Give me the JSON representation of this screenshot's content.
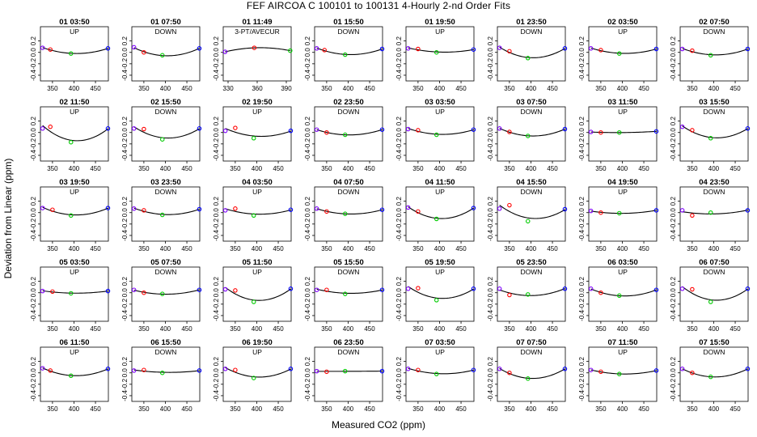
{
  "figure": {
    "title": "FEF   AIRCOA C   100101 to 100131   4-Hourly 2-nd Order Fits",
    "xlabel": "Measured CO2 (ppm)",
    "ylabel": "Deviation from Linear (ppm)"
  },
  "colors": {
    "curve": "#000000",
    "low_std": "#7f00ff",
    "mid_low_std": "#ff0000",
    "mid_high_std": "#00cc00",
    "high_std": "#0000ff"
  },
  "chart_data": {
    "type": "scatter",
    "panel_grid": {
      "rows": 5,
      "cols": 8
    },
    "ylim": [
      -0.5,
      0.45
    ],
    "yticks": [
      -0.4,
      -0.2,
      0.0,
      0.2
    ],
    "default_xlim": [
      322,
      480
    ],
    "default_xticks": [
      350,
      400,
      450
    ],
    "grid": false,
    "panels": [
      {
        "label": "01 03:50",
        "mode": "UP",
        "x": [
          327,
          345,
          393,
          479
        ],
        "y": [
          0.08,
          0.05,
          -0.02,
          0.07
        ]
      },
      {
        "label": "01 07:50",
        "mode": "DOWN",
        "x": [
          327,
          350,
          393,
          479
        ],
        "y": [
          0.09,
          0.0,
          -0.05,
          0.07
        ]
      },
      {
        "label": "01 11:49",
        "mode": "3-PT/AVECUR",
        "xlim": [
          325,
          395
        ],
        "xticks": [
          330,
          360,
          390
        ],
        "x": [
          327,
          357,
          394
        ],
        "y": [
          0.01,
          0.08,
          0.03
        ]
      },
      {
        "label": "01 15:50",
        "mode": "DOWN",
        "x": [
          327,
          345,
          393,
          479
        ],
        "y": [
          0.07,
          0.04,
          -0.04,
          0.06
        ]
      },
      {
        "label": "01 19:50",
        "mode": "UP",
        "x": [
          327,
          350,
          393,
          479
        ],
        "y": [
          0.07,
          0.06,
          0.0,
          0.05
        ]
      },
      {
        "label": "01 23:50",
        "mode": "DOWN",
        "x": [
          327,
          350,
          393,
          479
        ],
        "y": [
          0.08,
          0.02,
          -0.1,
          0.07
        ]
      },
      {
        "label": "02 03:50",
        "mode": "UP",
        "x": [
          327,
          350,
          393,
          479
        ],
        "y": [
          0.07,
          0.04,
          -0.02,
          0.06
        ]
      },
      {
        "label": "02 07:50",
        "mode": "DOWN",
        "x": [
          327,
          350,
          393,
          479
        ],
        "y": [
          0.06,
          0.03,
          -0.05,
          0.06
        ]
      },
      {
        "label": "02 11:50",
        "mode": "UP",
        "x": [
          327,
          345,
          393,
          479
        ],
        "y": [
          0.07,
          0.1,
          -0.17,
          0.07
        ]
      },
      {
        "label": "02 15:50",
        "mode": "DOWN",
        "x": [
          327,
          350,
          393,
          479
        ],
        "y": [
          0.07,
          0.06,
          -0.12,
          0.07
        ]
      },
      {
        "label": "02 19:50",
        "mode": "UP",
        "x": [
          327,
          350,
          393,
          479
        ],
        "y": [
          0.03,
          0.08,
          -0.1,
          0.03
        ]
      },
      {
        "label": "02 23:50",
        "mode": "DOWN",
        "x": [
          327,
          350,
          393,
          479
        ],
        "y": [
          0.05,
          0.0,
          -0.04,
          0.05
        ]
      },
      {
        "label": "03 03:50",
        "mode": "UP",
        "x": [
          327,
          350,
          393,
          479
        ],
        "y": [
          0.06,
          0.04,
          -0.04,
          0.05
        ]
      },
      {
        "label": "03 07:50",
        "mode": "DOWN",
        "x": [
          327,
          350,
          393,
          479
        ],
        "y": [
          0.07,
          0.01,
          -0.06,
          0.06
        ]
      },
      {
        "label": "03 11:50",
        "mode": "UP",
        "x": [
          327,
          350,
          393,
          479
        ],
        "y": [
          0.01,
          0.0,
          0.0,
          0.02
        ]
      },
      {
        "label": "03 15:50",
        "mode": "DOWN",
        "x": [
          327,
          350,
          393,
          479
        ],
        "y": [
          0.1,
          0.04,
          -0.1,
          0.07
        ]
      },
      {
        "label": "03 19:50",
        "mode": "UP",
        "x": [
          327,
          350,
          393,
          479
        ],
        "y": [
          0.08,
          0.05,
          -0.05,
          0.08
        ]
      },
      {
        "label": "03 23:50",
        "mode": "DOWN",
        "x": [
          327,
          350,
          393,
          479
        ],
        "y": [
          0.07,
          0.04,
          -0.04,
          0.06
        ]
      },
      {
        "label": "04 03:50",
        "mode": "UP",
        "x": [
          327,
          350,
          393,
          479
        ],
        "y": [
          0.04,
          0.07,
          -0.05,
          0.05
        ]
      },
      {
        "label": "04 07:50",
        "mode": "DOWN",
        "x": [
          327,
          350,
          393,
          479
        ],
        "y": [
          0.07,
          0.02,
          -0.02,
          0.05
        ]
      },
      {
        "label": "04 11:50",
        "mode": "UP",
        "x": [
          327,
          350,
          393,
          479
        ],
        "y": [
          0.09,
          0.02,
          -0.11,
          0.08
        ]
      },
      {
        "label": "04 15:50",
        "mode": "DOWN",
        "x": [
          327,
          350,
          393,
          479
        ],
        "y": [
          0.07,
          0.13,
          -0.15,
          0.06
        ]
      },
      {
        "label": "04 19:50",
        "mode": "UP",
        "x": [
          327,
          350,
          393,
          479
        ],
        "y": [
          0.03,
          0.0,
          -0.01,
          0.04
        ]
      },
      {
        "label": "04 23:50",
        "mode": "DOWN",
        "x": [
          327,
          350,
          393,
          479
        ],
        "y": [
          0.04,
          -0.05,
          0.0,
          0.04
        ]
      },
      {
        "label": "05 03:50",
        "mode": "UP",
        "x": [
          327,
          350,
          393,
          479
        ],
        "y": [
          0.03,
          0.02,
          -0.01,
          0.03
        ]
      },
      {
        "label": "05 07:50",
        "mode": "DOWN",
        "x": [
          327,
          350,
          393,
          479
        ],
        "y": [
          0.05,
          0.0,
          -0.02,
          0.05
        ]
      },
      {
        "label": "05 11:50",
        "mode": "UP",
        "x": [
          327,
          350,
          393,
          479
        ],
        "y": [
          0.06,
          0.04,
          -0.16,
          0.07
        ]
      },
      {
        "label": "05 15:50",
        "mode": "DOWN",
        "x": [
          327,
          350,
          393,
          479
        ],
        "y": [
          0.05,
          0.05,
          -0.02,
          0.05
        ]
      },
      {
        "label": "05 19:50",
        "mode": "UP",
        "x": [
          327,
          350,
          393,
          479
        ],
        "y": [
          0.07,
          0.08,
          -0.13,
          0.07
        ]
      },
      {
        "label": "05 23:50",
        "mode": "DOWN",
        "x": [
          327,
          350,
          393,
          479
        ],
        "y": [
          0.07,
          -0.04,
          -0.03,
          0.07
        ]
      },
      {
        "label": "06 03:50",
        "mode": "UP",
        "x": [
          327,
          350,
          393,
          479
        ],
        "y": [
          0.07,
          0.0,
          -0.05,
          0.05
        ]
      },
      {
        "label": "06 07:50",
        "mode": "DOWN",
        "x": [
          327,
          350,
          393,
          479
        ],
        "y": [
          0.07,
          0.06,
          -0.16,
          0.07
        ]
      },
      {
        "label": "06 11:50",
        "mode": "UP",
        "x": [
          327,
          345,
          393,
          479
        ],
        "y": [
          0.08,
          0.04,
          -0.05,
          0.07
        ]
      },
      {
        "label": "06 15:50",
        "mode": "DOWN",
        "x": [
          327,
          350,
          393,
          479
        ],
        "y": [
          0.04,
          0.05,
          0.0,
          0.04
        ]
      },
      {
        "label": "06 19:50",
        "mode": "UP",
        "x": [
          327,
          350,
          393,
          479
        ],
        "y": [
          0.07,
          0.05,
          -0.09,
          0.07
        ]
      },
      {
        "label": "06 23:50",
        "mode": "DOWN",
        "x": [
          327,
          350,
          393,
          479
        ],
        "y": [
          0.03,
          0.02,
          0.03,
          0.03
        ]
      },
      {
        "label": "07 03:50",
        "mode": "UP",
        "x": [
          327,
          350,
          393,
          479
        ],
        "y": [
          0.07,
          0.05,
          -0.02,
          0.05
        ]
      },
      {
        "label": "07 07:50",
        "mode": "DOWN",
        "x": [
          327,
          350,
          393,
          479
        ],
        "y": [
          0.07,
          0.0,
          -0.1,
          0.07
        ]
      },
      {
        "label": "07 11:50",
        "mode": "UP",
        "x": [
          327,
          350,
          393,
          479
        ],
        "y": [
          0.05,
          0.02,
          -0.02,
          0.04
        ]
      },
      {
        "label": "07 15:50",
        "mode": "DOWN",
        "x": [
          327,
          350,
          393,
          479
        ],
        "y": [
          0.07,
          0.0,
          -0.07,
          0.07
        ]
      }
    ]
  }
}
